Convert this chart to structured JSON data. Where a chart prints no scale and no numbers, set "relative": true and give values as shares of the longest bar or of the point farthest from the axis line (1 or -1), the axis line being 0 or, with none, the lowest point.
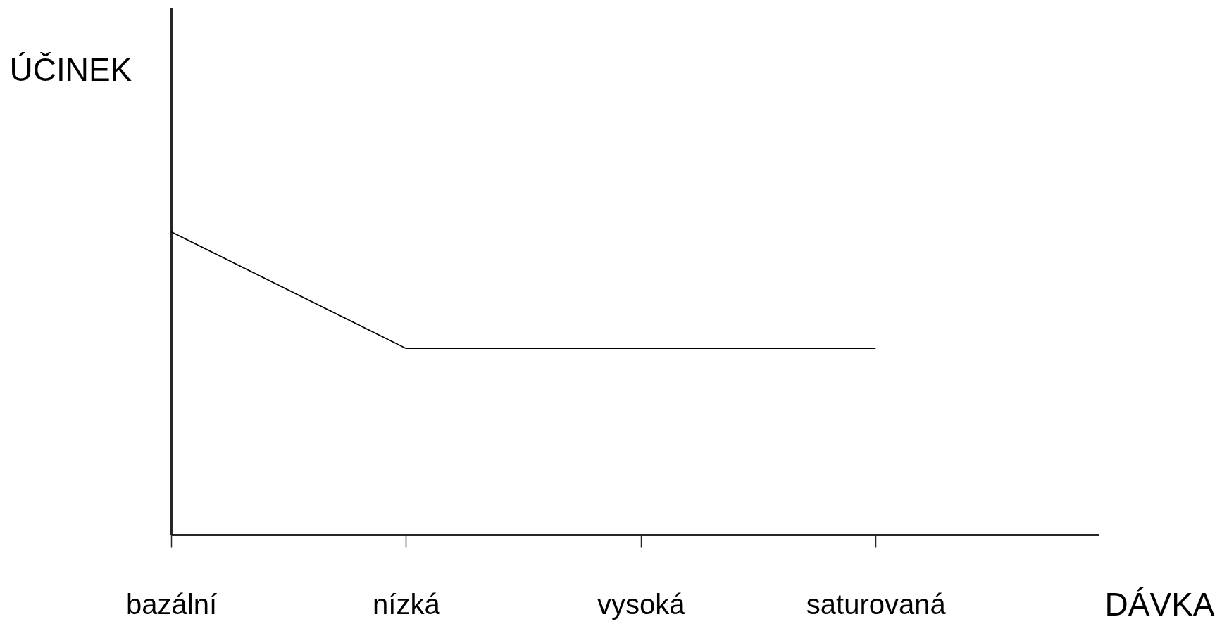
{
  "chart_data": {
    "type": "line",
    "relative": true,
    "xlabel": "DÁVKA",
    "ylabel": "ÚČINEK",
    "categories": [
      "bazální",
      "nízká",
      "vysoká",
      "saturovaná"
    ],
    "series": [
      {
        "color": "#000000",
        "values": [
          1,
          0.615,
          0.615,
          0.615
        ]
      }
    ]
  }
}
